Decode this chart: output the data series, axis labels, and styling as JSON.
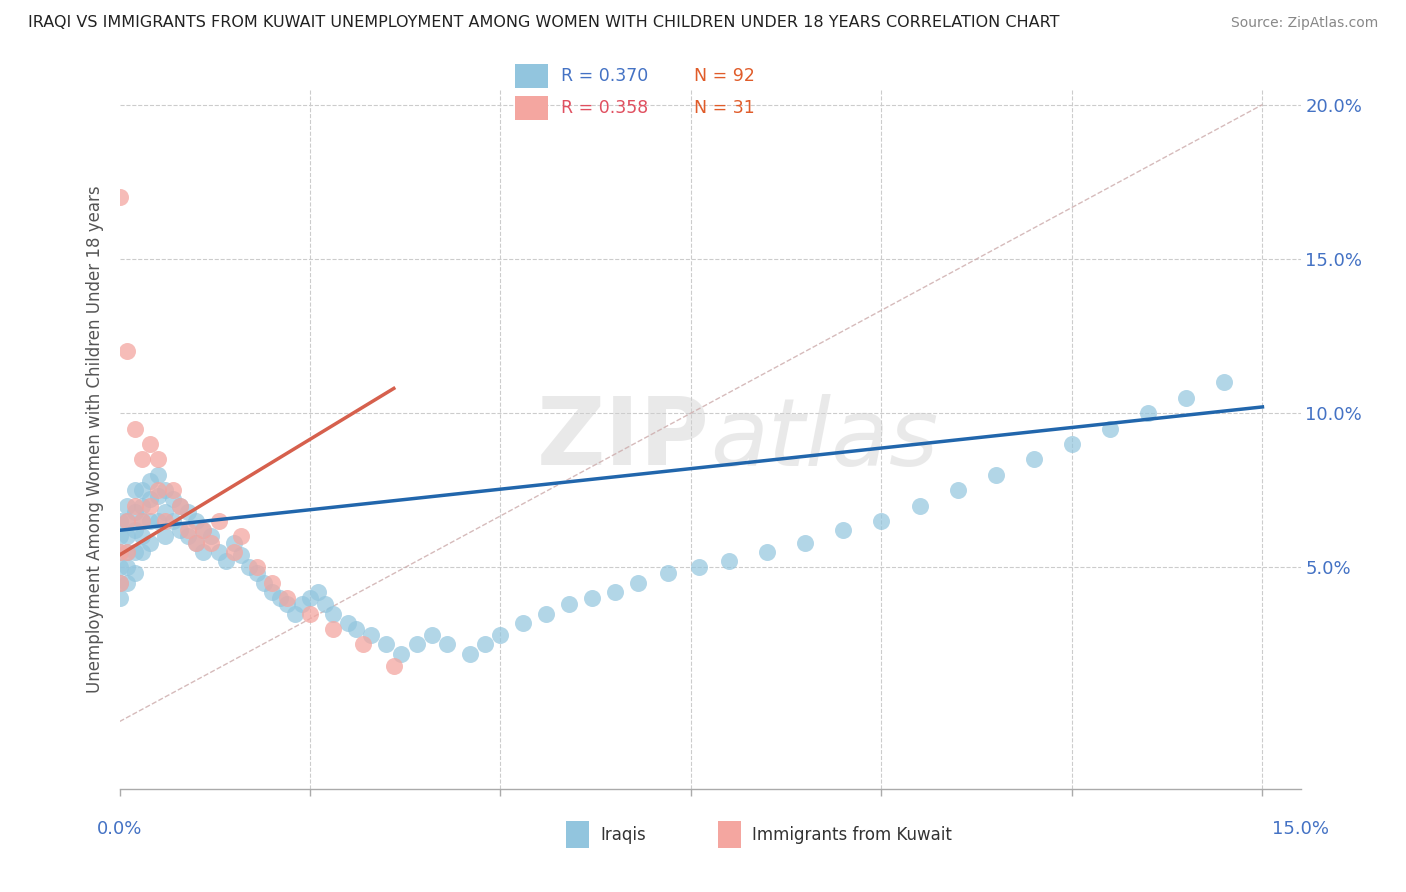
{
  "title": "IRAQI VS IMMIGRANTS FROM KUWAIT UNEMPLOYMENT AMONG WOMEN WITH CHILDREN UNDER 18 YEARS CORRELATION CHART",
  "source": "Source: ZipAtlas.com",
  "ylabel": "Unemployment Among Women with Children Under 18 years",
  "legend_blue_r": "R = 0.370",
  "legend_blue_n": "N = 92",
  "legend_pink_r": "R = 0.358",
  "legend_pink_n": "N = 31",
  "blue_color": "#92c5de",
  "pink_color": "#f4a6a0",
  "blue_line_color": "#2166ac",
  "pink_line_color": "#d6604d",
  "ref_line_color": "#ccaaaa",
  "background_color": "#ffffff",
  "grid_color": "#cccccc",
  "watermark_zip": "ZIP",
  "watermark_atlas": "atlas",
  "xlim": [
    0.0,
    0.155
  ],
  "ylim": [
    -0.022,
    0.205
  ],
  "blue_dots_x": [
    0.0,
    0.0,
    0.0,
    0.0,
    0.0,
    0.0,
    0.001,
    0.001,
    0.001,
    0.001,
    0.001,
    0.001,
    0.002,
    0.002,
    0.002,
    0.002,
    0.002,
    0.003,
    0.003,
    0.003,
    0.003,
    0.003,
    0.004,
    0.004,
    0.004,
    0.004,
    0.005,
    0.005,
    0.005,
    0.006,
    0.006,
    0.006,
    0.007,
    0.007,
    0.008,
    0.008,
    0.009,
    0.009,
    0.01,
    0.01,
    0.011,
    0.011,
    0.012,
    0.013,
    0.014,
    0.015,
    0.016,
    0.017,
    0.018,
    0.019,
    0.02,
    0.021,
    0.022,
    0.023,
    0.024,
    0.025,
    0.026,
    0.027,
    0.028,
    0.03,
    0.031,
    0.033,
    0.035,
    0.037,
    0.039,
    0.041,
    0.043,
    0.046,
    0.048,
    0.05,
    0.053,
    0.056,
    0.059,
    0.062,
    0.065,
    0.068,
    0.072,
    0.076,
    0.08,
    0.085,
    0.09,
    0.095,
    0.1,
    0.105,
    0.11,
    0.115,
    0.12,
    0.125,
    0.13,
    0.135,
    0.14,
    0.145
  ],
  "blue_dots_y": [
    0.065,
    0.06,
    0.055,
    0.05,
    0.045,
    0.04,
    0.07,
    0.065,
    0.06,
    0.055,
    0.05,
    0.045,
    0.075,
    0.068,
    0.062,
    0.055,
    0.048,
    0.075,
    0.07,
    0.065,
    0.06,
    0.055,
    0.078,
    0.072,
    0.065,
    0.058,
    0.08,
    0.073,
    0.065,
    0.075,
    0.068,
    0.06,
    0.072,
    0.065,
    0.07,
    0.062,
    0.068,
    0.06,
    0.065,
    0.058,
    0.062,
    0.055,
    0.06,
    0.055,
    0.052,
    0.058,
    0.054,
    0.05,
    0.048,
    0.045,
    0.042,
    0.04,
    0.038,
    0.035,
    0.038,
    0.04,
    0.042,
    0.038,
    0.035,
    0.032,
    0.03,
    0.028,
    0.025,
    0.022,
    0.025,
    0.028,
    0.025,
    0.022,
    0.025,
    0.028,
    0.032,
    0.035,
    0.038,
    0.04,
    0.042,
    0.045,
    0.048,
    0.05,
    0.052,
    0.055,
    0.058,
    0.062,
    0.065,
    0.07,
    0.075,
    0.08,
    0.085,
    0.09,
    0.095,
    0.1,
    0.105,
    0.11
  ],
  "pink_dots_x": [
    0.0,
    0.0,
    0.0,
    0.001,
    0.001,
    0.001,
    0.002,
    0.002,
    0.003,
    0.003,
    0.004,
    0.004,
    0.005,
    0.005,
    0.006,
    0.007,
    0.008,
    0.009,
    0.01,
    0.011,
    0.012,
    0.013,
    0.015,
    0.016,
    0.018,
    0.02,
    0.022,
    0.025,
    0.028,
    0.032,
    0.036
  ],
  "pink_dots_y": [
    0.17,
    0.055,
    0.045,
    0.12,
    0.065,
    0.055,
    0.095,
    0.07,
    0.085,
    0.065,
    0.09,
    0.07,
    0.085,
    0.075,
    0.065,
    0.075,
    0.07,
    0.062,
    0.058,
    0.062,
    0.058,
    0.065,
    0.055,
    0.06,
    0.05,
    0.045,
    0.04,
    0.035,
    0.03,
    0.025,
    0.018
  ],
  "blue_trend_x0": 0.0,
  "blue_trend_y0": 0.062,
  "blue_trend_x1": 0.15,
  "blue_trend_y1": 0.102,
  "pink_trend_x0": 0.0,
  "pink_trend_y0": 0.054,
  "pink_trend_x1": 0.036,
  "pink_trend_y1": 0.108,
  "ref_line_x0": 0.0,
  "ref_line_y0": 0.0,
  "ref_line_x1": 0.15,
  "ref_line_y1": 0.2
}
